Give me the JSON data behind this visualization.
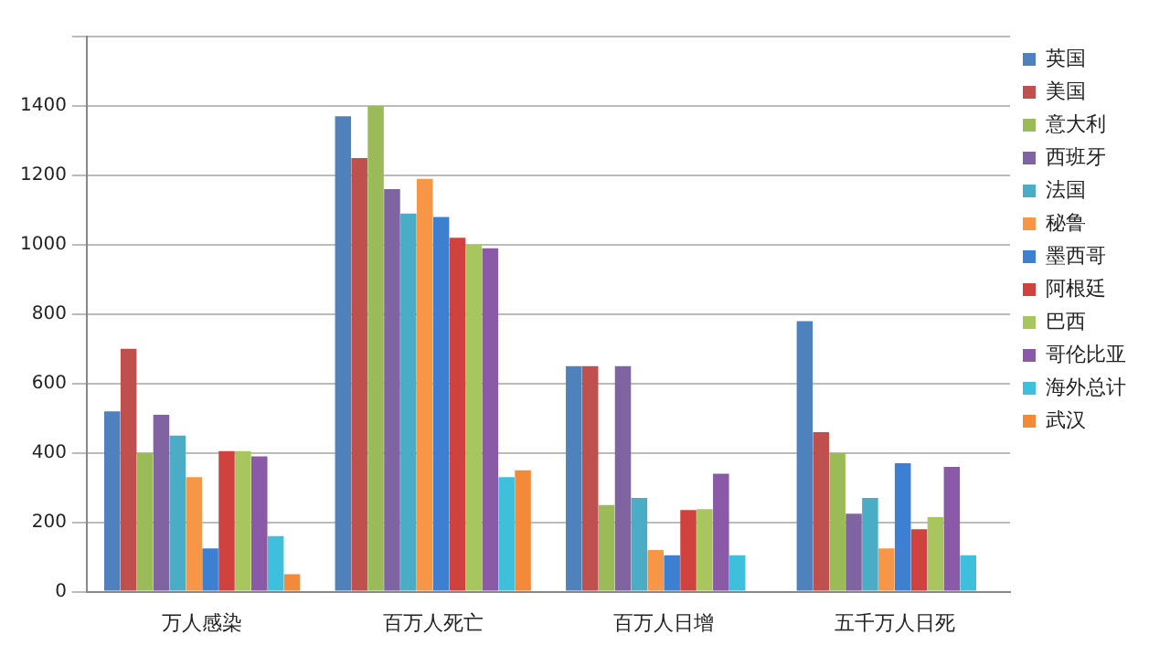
{
  "chart_data": {
    "type": "bar",
    "categories": [
      "万人感染",
      "百万人死亡",
      "百万人日增",
      "五千万人日死"
    ],
    "series": [
      {
        "name": "英国",
        "color": "#4f81bd",
        "values": [
          520,
          1370,
          650,
          780
        ]
      },
      {
        "name": "美国",
        "color": "#c0504d",
        "values": [
          700,
          1250,
          650,
          460
        ]
      },
      {
        "name": "意大利",
        "color": "#9bbb59",
        "values": [
          400,
          1400,
          250,
          400
        ]
      },
      {
        "name": "西班牙",
        "color": "#8064a2",
        "values": [
          510,
          1160,
          650,
          225
        ]
      },
      {
        "name": "法国",
        "color": "#4bacc6",
        "values": [
          450,
          1090,
          270,
          270
        ]
      },
      {
        "name": "秘鲁",
        "color": "#f79646",
        "values": [
          330,
          1190,
          120,
          125
        ]
      },
      {
        "name": "墨西哥",
        "color": "#3d7fd0",
        "values": [
          125,
          1080,
          105,
          370
        ]
      },
      {
        "name": "阿根廷",
        "color": "#d0423e",
        "values": [
          405,
          1020,
          235,
          180
        ]
      },
      {
        "name": "巴西",
        "color": "#a8c65e",
        "values": [
          405,
          1000,
          238,
          215
        ]
      },
      {
        "name": "哥伦比亚",
        "color": "#8a5aa8",
        "values": [
          390,
          990,
          340,
          360
        ]
      },
      {
        "name": "海外总计",
        "color": "#3ec0dc",
        "values": [
          160,
          330,
          105,
          105
        ]
      },
      {
        "name": "武汉",
        "color": "#f28a3a",
        "values": [
          50,
          350,
          null,
          null
        ]
      }
    ],
    "ylim": [
      0,
      1600
    ],
    "yticks": [
      0,
      200,
      400,
      600,
      800,
      1000,
      1200,
      1400,
      {
        "value": 1600,
        "label": null
      }
    ],
    "grid": "y",
    "legend": "right"
  }
}
